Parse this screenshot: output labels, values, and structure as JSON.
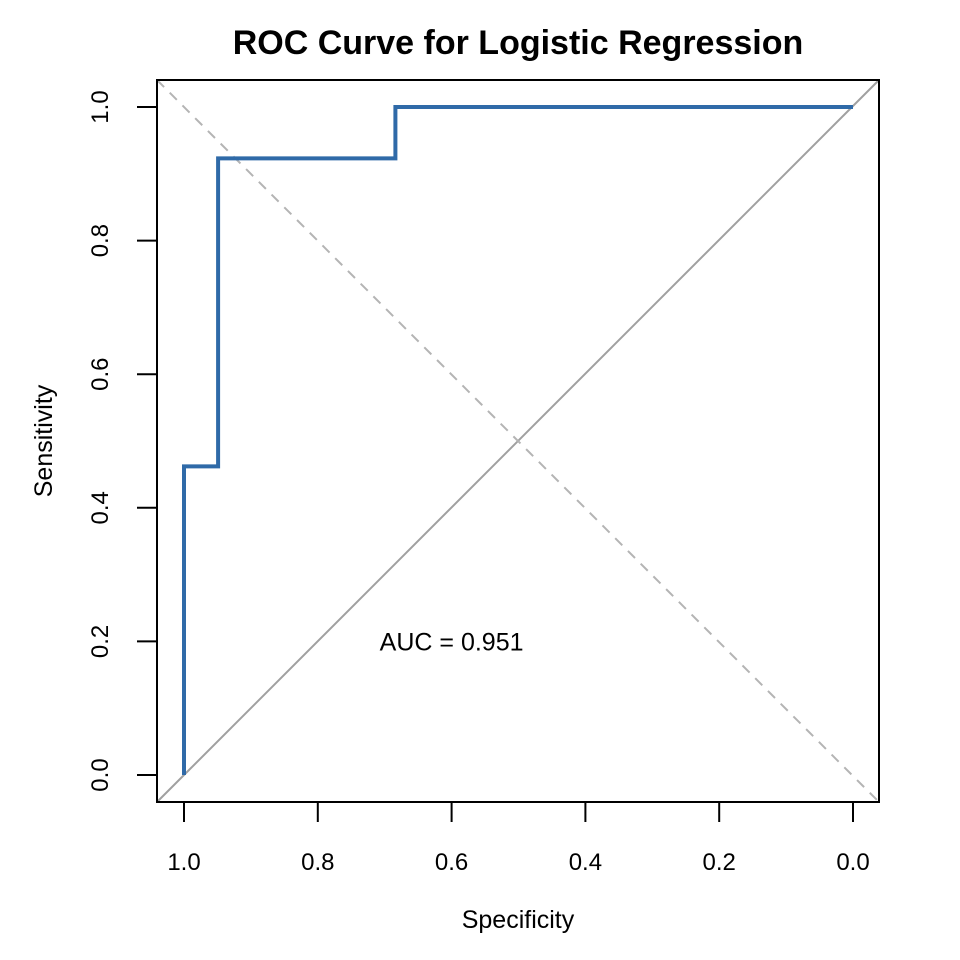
{
  "chart_data": {
    "type": "line",
    "title": "ROC Curve for Logistic Regression",
    "xlabel": "Specificity",
    "ylabel": "Sensitivity",
    "xlim": [
      1.0,
      0.0
    ],
    "ylim": [
      0.0,
      1.0
    ],
    "x_reversed": true,
    "grid": false,
    "legend": "none",
    "xticks": [
      "1.0",
      "0.8",
      "0.6",
      "0.4",
      "0.2",
      "0.0"
    ],
    "yticks": [
      "0.0",
      "0.2",
      "0.4",
      "0.6",
      "0.8",
      "1.0"
    ],
    "series": [
      {
        "name": "ROC curve",
        "color": "#2f6aa8",
        "points": [
          {
            "specificity": 1.0,
            "sensitivity": 0.0
          },
          {
            "specificity": 1.0,
            "sensitivity": 0.462
          },
          {
            "specificity": 0.949,
            "sensitivity": 0.462
          },
          {
            "specificity": 0.949,
            "sensitivity": 0.923
          },
          {
            "specificity": 0.684,
            "sensitivity": 0.923
          },
          {
            "specificity": 0.684,
            "sensitivity": 1.0
          },
          {
            "specificity": 0.0,
            "sensitivity": 1.0
          }
        ]
      }
    ],
    "reference_lines": [
      {
        "name": "chance diagonal",
        "style": "solid",
        "color": "#a0a0a0"
      },
      {
        "name": "dashed diagonal",
        "style": "dashed",
        "color": "#b4b4b4"
      }
    ],
    "annotations": [
      {
        "text": "AUC = 0.951",
        "specificity": 0.6,
        "sensitivity": 0.2
      }
    ]
  }
}
